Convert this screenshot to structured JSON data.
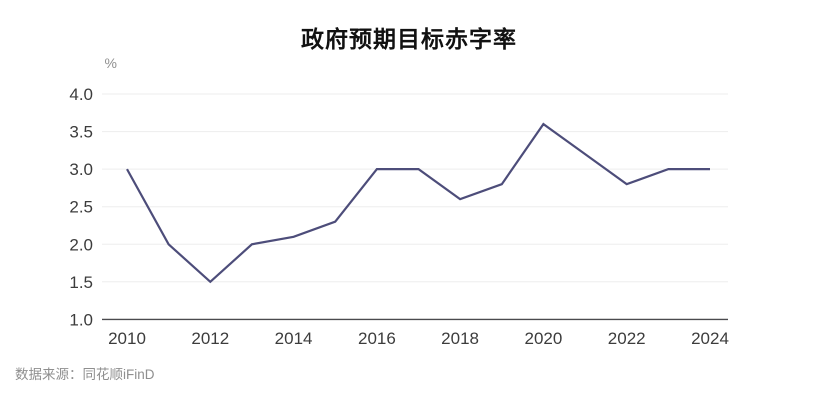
{
  "page": {
    "title": "政府预期目标赤字率",
    "source_note": "数据来源：同花顺iFinD"
  },
  "chart_data": {
    "type": "line",
    "title": "政府预期目标赤字率",
    "unit_label": "%",
    "x": [
      2010,
      2011,
      2012,
      2013,
      2014,
      2015,
      2016,
      2017,
      2018,
      2019,
      2020,
      2021,
      2022,
      2023,
      2024
    ],
    "series": [
      {
        "name": "政府预期目标赤字率",
        "values": [
          3.0,
          2.0,
          1.5,
          2.0,
          2.1,
          2.3,
          3.0,
          3.0,
          2.6,
          2.8,
          3.6,
          3.2,
          2.8,
          3.0,
          3.0
        ]
      }
    ],
    "ylim": [
      1.0,
      4.0
    ],
    "yticks": [
      1.0,
      1.5,
      2.0,
      2.5,
      3.0,
      3.5,
      4.0
    ],
    "xtick_labels": [
      "2010",
      "2012",
      "2014",
      "2016",
      "2018",
      "2020",
      "2022",
      "2024"
    ],
    "grid": "horizontal",
    "legend": "none",
    "line_color": "#4d4d7a",
    "grid_color": "#ededed",
    "axis_color": "#4a4a4e",
    "tick_label_color": "#3c3c3c",
    "unit_label_color": "#8f8f8f",
    "source": "数据来源：同花顺iFinD"
  }
}
